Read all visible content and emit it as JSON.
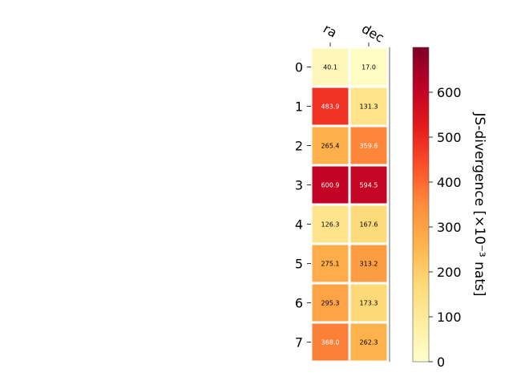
{
  "chart_data": {
    "type": "heatmap",
    "x_categories": [
      "ra",
      "dec"
    ],
    "y_categories": [
      "0",
      "1",
      "2",
      "3",
      "4",
      "5",
      "6",
      "7"
    ],
    "values": [
      [
        40.1,
        17.0
      ],
      [
        483.9,
        131.3
      ],
      [
        265.4,
        359.6
      ],
      [
        600.9,
        594.5
      ],
      [
        126.3,
        167.6
      ],
      [
        275.1,
        313.2
      ],
      [
        295.3,
        173.3
      ],
      [
        368.0,
        262.3
      ]
    ],
    "value_labels": [
      [
        "40.1",
        "17.0"
      ],
      [
        "483.9",
        "131.3"
      ],
      [
        "265.4",
        "359.6"
      ],
      [
        "600.9",
        "594.5"
      ],
      [
        "126.3",
        "167.6"
      ],
      [
        "275.1",
        "313.2"
      ],
      [
        "295.3",
        "173.3"
      ],
      [
        "368.0",
        "262.3"
      ]
    ],
    "colormap": "YlOrRd",
    "colorbar": {
      "label": "JS-divergence [×10⁻³ nats]",
      "ticks": [
        "0",
        "100",
        "200",
        "300",
        "400",
        "500",
        "600"
      ],
      "range": [
        0,
        700
      ]
    }
  }
}
